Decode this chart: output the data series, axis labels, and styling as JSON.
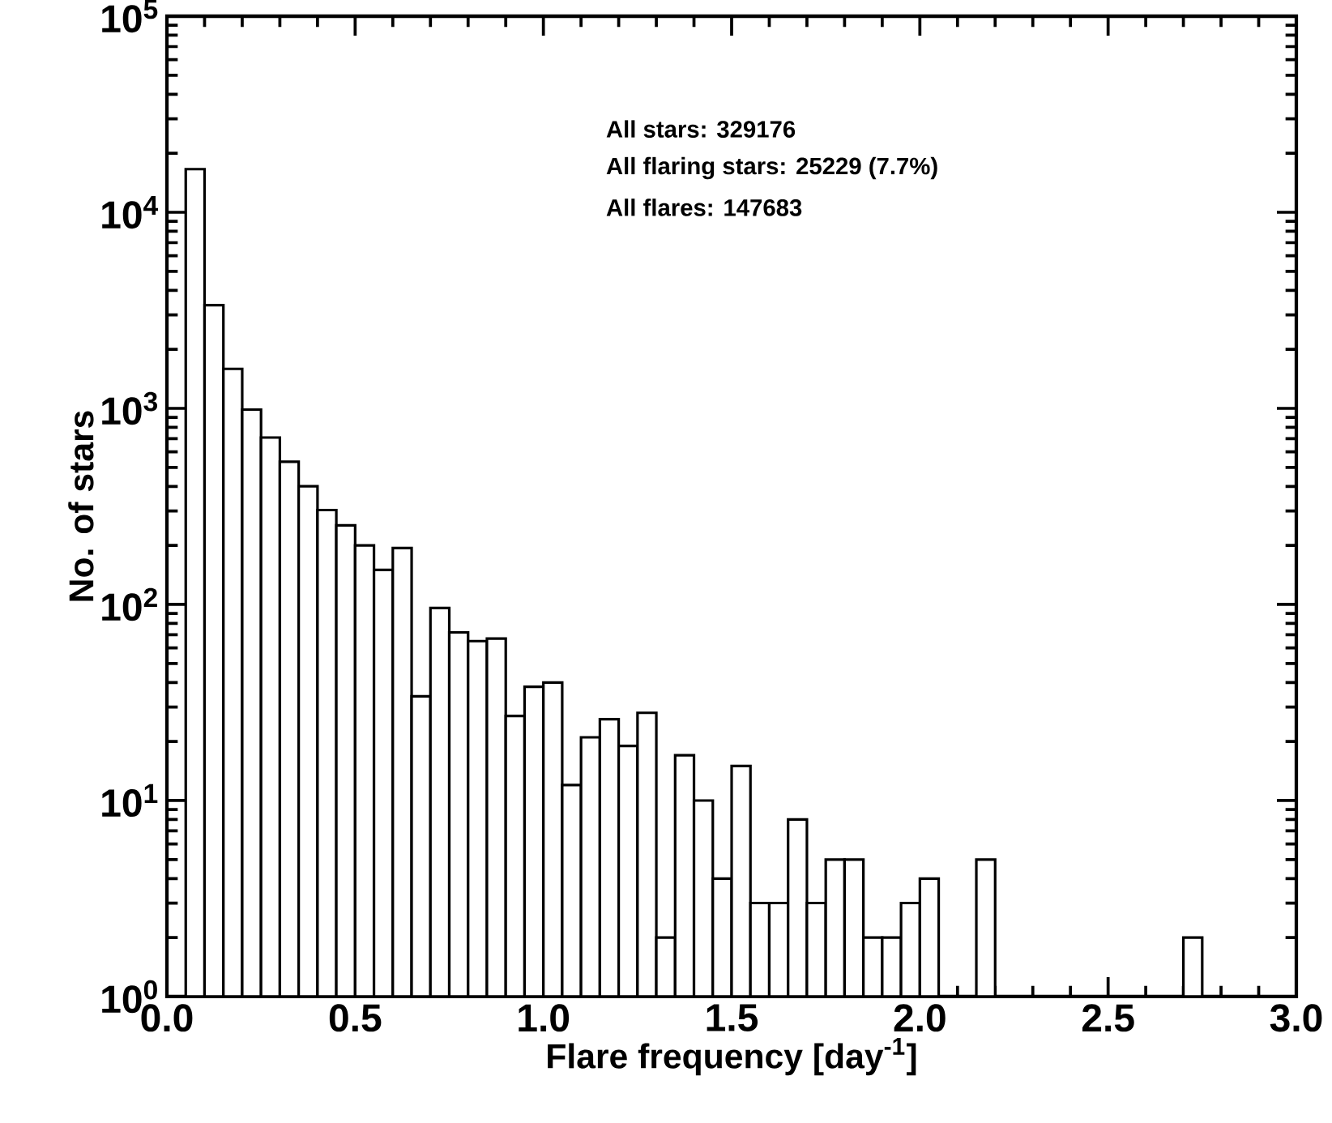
{
  "chart_data": {
    "type": "histogram",
    "xlabel": "Flare frequency [day$^{-1}$]",
    "ylabel": "No. of stars",
    "annotations": [
      "All stars: 329176",
      "All flaring stars: 25229 (7.7%)",
      "All flares: 147683"
    ],
    "bins": [
      0.05,
      0.1,
      0.15,
      0.2,
      0.25,
      0.3,
      0.35,
      0.4,
      0.45,
      0.5,
      0.55,
      0.6,
      0.65,
      0.7,
      0.75,
      0.8,
      0.85,
      0.9,
      0.95,
      1.0,
      1.05,
      1.1,
      1.15,
      1.2,
      1.25,
      1.3,
      1.35,
      1.4,
      1.45,
      1.5,
      1.55,
      1.6,
      1.65,
      1.7,
      1.75,
      1.8,
      1.85,
      1.9,
      1.95,
      2.0,
      2.05,
      2.1,
      2.15,
      2.2,
      2.25,
      2.3,
      2.35,
      2.4,
      2.45,
      2.5,
      2.55,
      2.6,
      2.65,
      2.7,
      2.75
    ],
    "values": [
      16600,
      3360,
      1590,
      986,
      710,
      534,
      401,
      303,
      253,
      200,
      150,
      194,
      34,
      96,
      72,
      65,
      67,
      27,
      38,
      40,
      12,
      21,
      26,
      19,
      28,
      2,
      17,
      10,
      4,
      15,
      3,
      3,
      8,
      3,
      5,
      5,
      2,
      2,
      3,
      4,
      null,
      null,
      5,
      null,
      null,
      null,
      null,
      null,
      null,
      null,
      null,
      null,
      null,
      2
    ],
    "color": "#ffffff",
    "log": "y",
    "xlim": [
      0,
      3
    ],
    "xticks": [
      {
        "value": 0,
        "label": "0.0"
      },
      0.5,
      {
        "value": 1,
        "label": "1.0"
      },
      1.5,
      {
        "value": 2,
        "label": "2.0"
      },
      2.5,
      {
        "value": 3,
        "label": "3.0"
      }
    ],
    "ylim": [
      1,
      100000
    ],
    "yticks": [
      {
        "value": 1,
        "label": "10$^{0}$"
      },
      {
        "value": 10,
        "label": "10$^{1}$"
      },
      {
        "value": 100,
        "label": "10$^{2}$"
      },
      {
        "value": 1000,
        "label": "10$^{3}$"
      },
      {
        "value": 10000,
        "label": "10$^{4}$"
      },
      {
        "value": 100000,
        "label": "10$^{5}$"
      }
    ]
  }
}
